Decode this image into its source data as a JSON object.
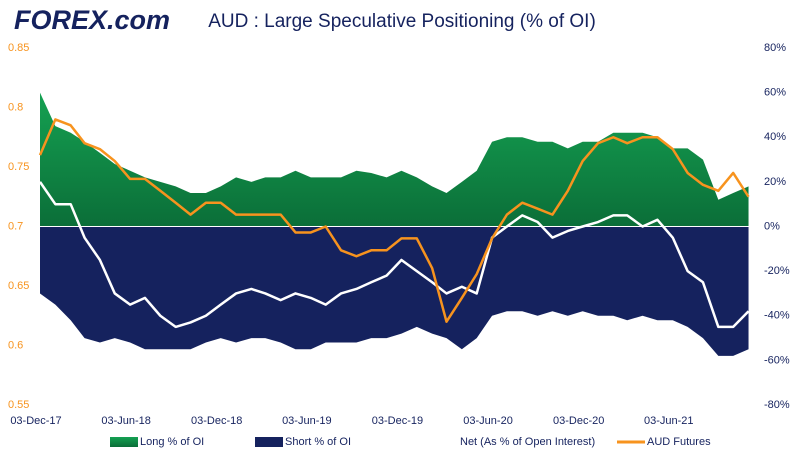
{
  "logo_text": "FOREX.com",
  "chart_data": {
    "type": "area-line",
    "title": "AUD : Large Speculative Positioning (% of OI)",
    "x": [
      "2017-12-03",
      "2018-01-03",
      "2018-02-03",
      "2018-03-03",
      "2018-04-03",
      "2018-05-03",
      "2018-06-03",
      "2018-07-03",
      "2018-08-03",
      "2018-09-03",
      "2018-10-03",
      "2018-11-03",
      "2018-12-03",
      "2019-01-03",
      "2019-02-03",
      "2019-03-03",
      "2019-04-03",
      "2019-05-03",
      "2019-06-03",
      "2019-07-03",
      "2019-08-03",
      "2019-09-03",
      "2019-10-03",
      "2019-11-03",
      "2019-12-03",
      "2020-01-03",
      "2020-02-03",
      "2020-03-03",
      "2020-04-03",
      "2020-05-03",
      "2020-06-03",
      "2020-07-03",
      "2020-08-03",
      "2020-09-03",
      "2020-10-03",
      "2020-11-03",
      "2020-12-03",
      "2021-01-03",
      "2021-02-03",
      "2021-03-03",
      "2021-04-03",
      "2021-05-03",
      "2021-06-03",
      "2021-07-03",
      "2021-08-03",
      "2021-09-03",
      "2021-10-03",
      "2021-11-03"
    ],
    "xlim": [
      "2017-12-03",
      "2021-11-10"
    ],
    "xticks": [
      {
        "value": "2017-12-03",
        "label": "03-Dec-17"
      },
      {
        "value": "2018-06-03",
        "label": "03-Jun-18"
      },
      {
        "value": "2018-12-03",
        "label": "03-Dec-18"
      },
      {
        "value": "2019-06-03",
        "label": "03-Jun-19"
      },
      {
        "value": "2019-12-03",
        "label": "03-Dec-19"
      },
      {
        "value": "2020-06-03",
        "label": "03-Jun-20"
      },
      {
        "value": "2020-12-03",
        "label": "03-Dec-20"
      },
      {
        "value": "2021-06-03",
        "label": "03-Jun-21"
      }
    ],
    "ylim": [
      0.55,
      0.85
    ],
    "yticks": [
      0.55,
      0.6,
      0.65,
      0.7,
      0.75,
      0.8,
      0.85
    ],
    "y2lim": [
      -80,
      80
    ],
    "y2ticks": [
      {
        "value": -80,
        "label": "-80%"
      },
      {
        "value": -60,
        "label": "-60%"
      },
      {
        "value": -40,
        "label": "-40%"
      },
      {
        "value": -20,
        "label": "-20%"
      },
      {
        "value": 0,
        "label": "0%"
      },
      {
        "value": 20,
        "label": "20%"
      },
      {
        "value": 40,
        "label": "40%"
      },
      {
        "value": 60,
        "label": "60%"
      },
      {
        "value": 80,
        "label": "80%"
      }
    ],
    "series": [
      {
        "name": "Long % of OI",
        "kind": "area",
        "axis": "y2",
        "color": "#15a152",
        "values": [
          60,
          45,
          42,
          38,
          33,
          28,
          25,
          22,
          20,
          18,
          15,
          15,
          18,
          22,
          20,
          22,
          22,
          25,
          22,
          22,
          22,
          25,
          24,
          22,
          25,
          22,
          18,
          15,
          20,
          25,
          38,
          40,
          40,
          38,
          38,
          35,
          38,
          38,
          42,
          42,
          42,
          40,
          35,
          35,
          30,
          12,
          15,
          18
        ]
      },
      {
        "name": "Short % of OI",
        "kind": "area",
        "axis": "y2",
        "color": "#15225e",
        "values": [
          -30,
          -35,
          -42,
          -50,
          -52,
          -50,
          -52,
          -55,
          -55,
          -55,
          -55,
          -52,
          -50,
          -52,
          -50,
          -50,
          -52,
          -55,
          -55,
          -52,
          -52,
          -52,
          -50,
          -50,
          -48,
          -45,
          -48,
          -50,
          -55,
          -50,
          -40,
          -38,
          -38,
          -40,
          -38,
          -40,
          -38,
          -40,
          -40,
          -42,
          -40,
          -42,
          -42,
          -45,
          -50,
          -58,
          -58,
          -55
        ]
      },
      {
        "name": "Net (As % of Open Interest)",
        "kind": "line",
        "axis": "y2",
        "color": "#ffffff",
        "values": [
          20,
          10,
          10,
          -5,
          -15,
          -30,
          -35,
          -32,
          -40,
          -45,
          -43,
          -40,
          -35,
          -30,
          -28,
          -30,
          -33,
          -30,
          -32,
          -35,
          -30,
          -28,
          -25,
          -22,
          -15,
          -20,
          -25,
          -30,
          -27,
          -30,
          -5,
          0,
          5,
          2,
          -5,
          -2,
          0,
          2,
          5,
          5,
          0,
          3,
          -5,
          -20,
          -25,
          -45,
          -45,
          -38
        ]
      },
      {
        "name": "AUD Futures",
        "kind": "line",
        "color": "#f7931e",
        "values": [
          0.76,
          0.79,
          0.785,
          0.77,
          0.765,
          0.755,
          0.74,
          0.74,
          0.73,
          0.72,
          0.71,
          0.72,
          0.72,
          0.71,
          0.71,
          0.71,
          0.71,
          0.695,
          0.695,
          0.7,
          0.68,
          0.675,
          0.68,
          0.68,
          0.69,
          0.69,
          0.665,
          0.62,
          0.64,
          0.66,
          0.69,
          0.71,
          0.72,
          0.715,
          0.71,
          0.73,
          0.755,
          0.77,
          0.775,
          0.77,
          0.775,
          0.775,
          0.765,
          0.745,
          0.735,
          0.73,
          0.745,
          0.725
        ]
      }
    ]
  }
}
